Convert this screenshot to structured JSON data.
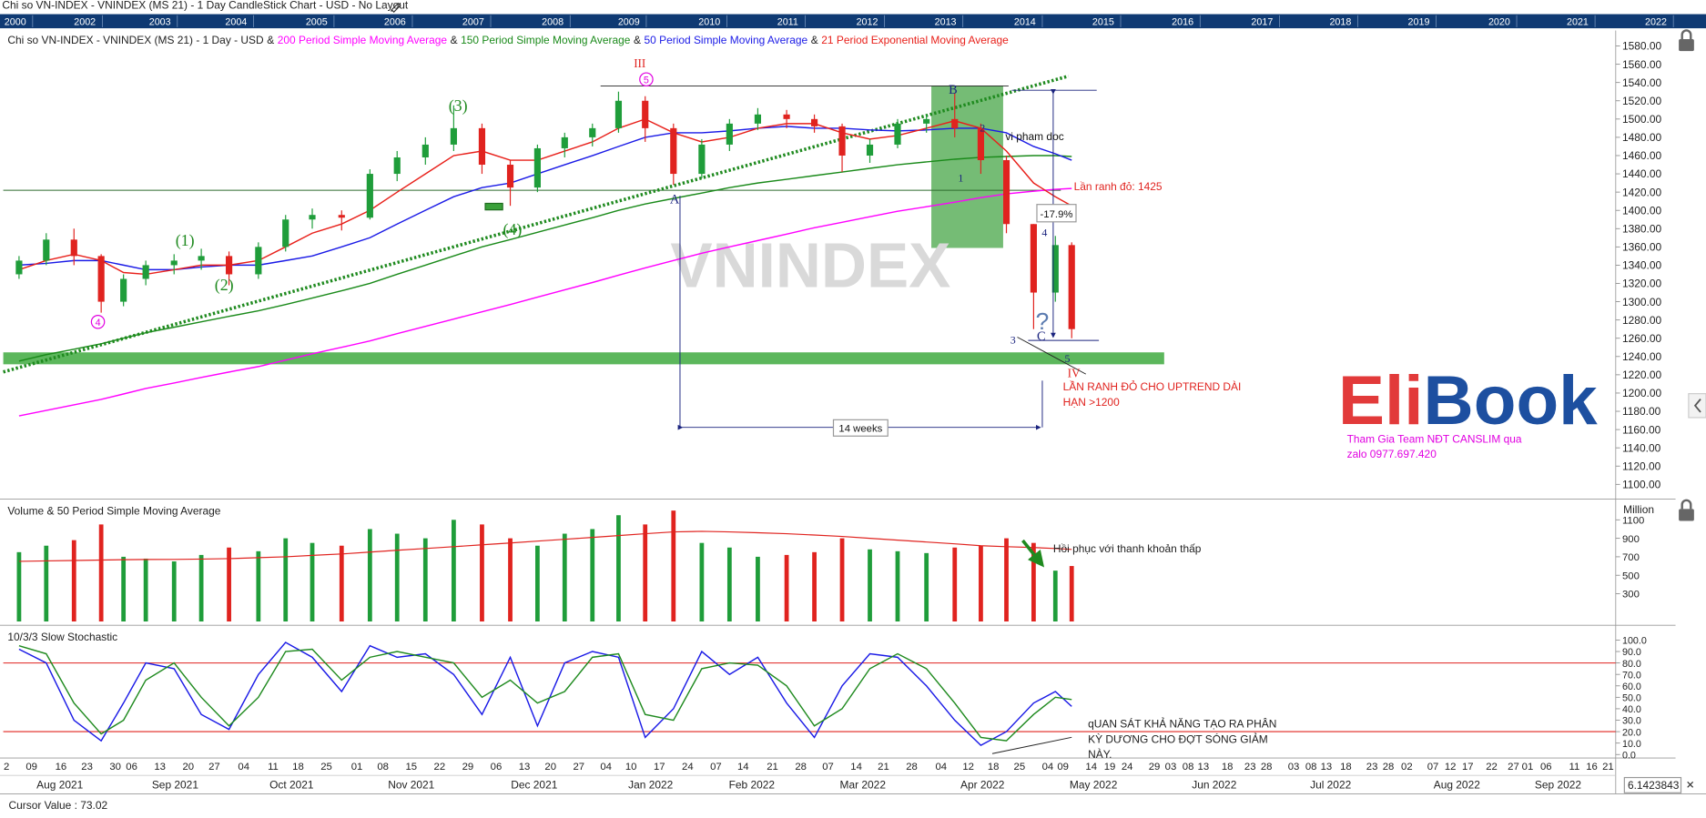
{
  "window_title": "Chi so VN-INDEX - VNINDEX (MS 21) - 1 Day CandleStick Chart - USD - No Layout",
  "timeline_years": [
    "2000",
    "2002",
    "2003",
    "2004",
    "2005",
    "2006",
    "2007",
    "2008",
    "2009",
    "2010",
    "2011",
    "2012",
    "2013",
    "2014",
    "2015",
    "2016",
    "2017",
    "2018",
    "2019",
    "2020",
    "2021",
    "2022"
  ],
  "x_axis": {
    "days": [
      "2",
      "09",
      "16",
      "23",
      "30",
      "06",
      "13",
      "20",
      "27",
      "04",
      "11",
      "18",
      "25",
      "01",
      "08",
      "15",
      "22",
      "29",
      "06",
      "13",
      "20",
      "27",
      "04",
      "10",
      "17",
      "24",
      "07",
      "14",
      "21",
      "28",
      "07",
      "14",
      "21",
      "28",
      "04",
      "12",
      "18",
      "25",
      "04",
      "09",
      "14",
      "19",
      "24",
      "29",
      "03",
      "08",
      "13",
      "18",
      "23",
      "28",
      "03",
      "08",
      "13",
      "18",
      "23",
      "28",
      "02",
      "07",
      "12",
      "17",
      "22",
      "27",
      "01",
      "06",
      "11",
      "16",
      "21"
    ],
    "months": [
      "Aug 2021",
      "Sep 2021",
      "Oct 2021",
      "Nov 2021",
      "Dec 2021",
      "Jan 2022",
      "Feb 2022",
      "Mar 2022",
      "Apr 2022",
      "May 2022",
      "Jun 2022",
      "Jul 2022",
      "Aug 2022",
      "Sep 2022"
    ]
  },
  "chart_data": [
    {
      "type": "candlestick",
      "subtitle": "Chi so VN-INDEX - VNINDEX (MS 21) - 1 Day - USD",
      "legend_separator": "&",
      "up_color": "#1f9d3a",
      "down_color": "#e0231f",
      "open": [
        1330,
        1345,
        1368,
        1350,
        1300,
        1325,
        1340,
        1345,
        1350,
        1330,
        1360,
        1390,
        1395,
        1392,
        1440,
        1458,
        1472,
        1490,
        1450,
        1425,
        1468,
        1480,
        1490,
        1520,
        1490,
        1440,
        1472,
        1495,
        1505,
        1500,
        1492,
        1460,
        1472,
        1495,
        1500,
        1490,
        1455,
        1385,
        1310,
        1362
      ],
      "high": [
        1350,
        1375,
        1380,
        1352,
        1330,
        1345,
        1352,
        1358,
        1355,
        1365,
        1395,
        1402,
        1400,
        1445,
        1465,
        1480,
        1515,
        1495,
        1455,
        1472,
        1485,
        1495,
        1530,
        1525,
        1495,
        1478,
        1500,
        1512,
        1510,
        1505,
        1495,
        1478,
        1500,
        1505,
        1528,
        1495,
        1460,
        1385,
        1372,
        1365
      ],
      "low": [
        1325,
        1340,
        1340,
        1288,
        1295,
        1318,
        1330,
        1335,
        1318,
        1325,
        1355,
        1380,
        1378,
        1390,
        1432,
        1450,
        1465,
        1440,
        1405,
        1420,
        1458,
        1470,
        1485,
        1475,
        1428,
        1435,
        1465,
        1488,
        1490,
        1485,
        1442,
        1452,
        1468,
        1485,
        1480,
        1440,
        1375,
        1270,
        1300,
        1260
      ],
      "close": [
        1345,
        1368,
        1350,
        1300,
        1325,
        1340,
        1345,
        1350,
        1330,
        1360,
        1390,
        1395,
        1392,
        1440,
        1458,
        1472,
        1490,
        1450,
        1425,
        1468,
        1480,
        1490,
        1520,
        1490,
        1440,
        1472,
        1495,
        1505,
        1500,
        1492,
        1460,
        1472,
        1495,
        1500,
        1490,
        1455,
        1385,
        1310,
        1362,
        1270
      ],
      "series": [
        {
          "name": "200 Period Simple Moving Average",
          "color": "#ff00ff",
          "values": [
            1175,
            1181,
            1187,
            1193,
            1199,
            1205,
            1211,
            1217,
            1223,
            1229,
            1236,
            1243,
            1250,
            1257,
            1265,
            1273,
            1281,
            1289,
            1297,
            1305,
            1313,
            1321,
            1329,
            1337,
            1345,
            1353,
            1360,
            1367,
            1374,
            1381,
            1387,
            1393,
            1399,
            1404,
            1409,
            1414,
            1418,
            1421,
            1423,
            1424
          ]
        },
        {
          "name": "150 Period Simple Moving Average",
          "color": "#1a8a1a",
          "values": [
            1235,
            1242,
            1248,
            1254,
            1260,
            1266,
            1272,
            1278,
            1284,
            1290,
            1297,
            1304,
            1312,
            1320,
            1330,
            1340,
            1350,
            1360,
            1368,
            1376,
            1384,
            1392,
            1400,
            1407,
            1413,
            1419,
            1425,
            1430,
            1434,
            1438,
            1442,
            1446,
            1450,
            1453,
            1456,
            1458,
            1459,
            1460,
            1460,
            1459
          ]
        },
        {
          "name": "50 Period Simple Moving Average",
          "color": "#1a1ae6",
          "values": [
            1340,
            1342,
            1345,
            1345,
            1340,
            1335,
            1335,
            1338,
            1340,
            1340,
            1345,
            1350,
            1360,
            1370,
            1385,
            1400,
            1415,
            1425,
            1430,
            1440,
            1450,
            1460,
            1470,
            1480,
            1485,
            1485,
            1487,
            1490,
            1492,
            1490,
            1490,
            1488,
            1487,
            1488,
            1490,
            1490,
            1485,
            1470,
            1462,
            1455
          ]
        },
        {
          "name": "21 Period Exponential Moving Average",
          "color": "#e8201a",
          "values": [
            1335,
            1345,
            1352,
            1345,
            1332,
            1330,
            1335,
            1340,
            1340,
            1345,
            1360,
            1375,
            1385,
            1400,
            1420,
            1440,
            1460,
            1465,
            1455,
            1455,
            1465,
            1475,
            1490,
            1500,
            1485,
            1475,
            1480,
            1490,
            1495,
            1495,
            1485,
            1478,
            1482,
            1490,
            1498,
            1490,
            1465,
            1430,
            1415,
            1405
          ]
        }
      ],
      "ylim": [
        1085,
        1597
      ],
      "yticks": [
        {
          "value": 1580,
          "label": "1580.00"
        },
        {
          "value": 1560,
          "label": "1560.00"
        },
        {
          "value": 1540,
          "label": "1540.00"
        },
        {
          "value": 1520,
          "label": "1520.00"
        },
        {
          "value": 1500,
          "label": "1500.00"
        },
        {
          "value": 1480,
          "label": "1480.00"
        },
        {
          "value": 1460,
          "label": "1460.00"
        },
        {
          "value": 1440,
          "label": "1440.00"
        },
        {
          "value": 1420,
          "label": "1420.00"
        },
        {
          "value": 1400,
          "label": "1400.00"
        },
        {
          "value": 1380,
          "label": "1380.00"
        },
        {
          "value": 1360,
          "label": "1360.00"
        },
        {
          "value": 1340,
          "label": "1340.00"
        },
        {
          "value": 1320,
          "label": "1320.00"
        },
        {
          "value": 1300,
          "label": "1300.00"
        },
        {
          "value": 1280,
          "label": "1280.00"
        },
        {
          "value": 1260,
          "label": "1260.00"
        },
        {
          "value": 1240,
          "label": "1240.00"
        },
        {
          "value": 1220,
          "label": "1220.00"
        },
        {
          "value": 1200,
          "label": "1200.00"
        },
        {
          "value": 1180,
          "label": "1180.00"
        },
        {
          "value": 1160,
          "label": "1160.00"
        },
        {
          "value": 1140,
          "label": "1140.00"
        },
        {
          "value": 1120,
          "label": "1120.00"
        },
        {
          "value": 1100,
          "label": "1100.00"
        }
      ],
      "watermark": "VNINDEX",
      "annotations": [
        "III",
        "5",
        "(3)",
        "(1)",
        "(2)",
        "(4)",
        "4",
        "A",
        "B",
        "1",
        "2",
        "3",
        "4",
        "5",
        "C",
        "IV",
        "vi pham doc",
        "Lần ranh đỏ: 1425",
        "-17.9%",
        "14 weeks",
        "LẦN RANH ĐỎ CHO UPTREND DÀI",
        "HẠN >1200",
        "?"
      ]
    },
    {
      "type": "volume",
      "title": "Volume & 50 Period Simple Moving Average",
      "unit_label": "Million",
      "values": [
        750,
        820,
        880,
        1050,
        700,
        680,
        650,
        720,
        800,
        760,
        900,
        850,
        820,
        1000,
        950,
        900,
        1100,
        1050,
        900,
        820,
        950,
        1000,
        1150,
        1050,
        1200,
        850,
        800,
        700,
        720,
        750,
        900,
        780,
        760,
        740,
        800,
        820,
        900,
        850,
        550,
        600
      ],
      "ma": {
        "color": "#e0231f",
        "values": [
          650,
          655,
          660,
          665,
          668,
          670,
          672,
          675,
          680,
          690,
          700,
          715,
          730,
          750,
          770,
          790,
          810,
          830,
          850,
          870,
          890,
          910,
          930,
          950,
          970,
          975,
          970,
          960,
          950,
          935,
          920,
          900,
          880,
          860,
          840,
          820,
          810,
          800,
          790,
          780
        ]
      },
      "ylim": [
        -18,
        1312
      ],
      "yticks": [
        300,
        500,
        700,
        900,
        1100
      ],
      "annotation": "Hồi phục với thanh khoản thấp"
    },
    {
      "type": "stochastic",
      "title": "10/3/3 Slow Stochastic",
      "series": [
        {
          "color": "#1a1ae6",
          "values": [
            92,
            80,
            30,
            12,
            45,
            80,
            75,
            35,
            22,
            70,
            98,
            85,
            55,
            95,
            85,
            88,
            70,
            35,
            85,
            25,
            80,
            90,
            85,
            15,
            40,
            90,
            70,
            85,
            45,
            15,
            60,
            88,
            85,
            60,
            30,
            8,
            20,
            45,
            55,
            42
          ]
        },
        {
          "color": "#1f8a1f",
          "values": [
            95,
            88,
            45,
            18,
            30,
            65,
            80,
            50,
            25,
            50,
            90,
            92,
            65,
            85,
            90,
            85,
            80,
            50,
            65,
            45,
            55,
            85,
            88,
            35,
            30,
            75,
            80,
            78,
            60,
            25,
            40,
            75,
            88,
            75,
            45,
            15,
            12,
            35,
            50,
            48
          ]
        }
      ],
      "levels": [
        80,
        20
      ],
      "level_color": "#e0231f",
      "ylim": [
        -3,
        111
      ],
      "yticks": [
        {
          "value": 100,
          "label": "100.0"
        },
        {
          "value": 90,
          "label": "90.0"
        },
        {
          "value": 80,
          "label": "80.0"
        },
        {
          "value": 70,
          "label": "70.0"
        },
        {
          "value": 60,
          "label": "60.0"
        },
        {
          "value": 50,
          "label": "50.0"
        },
        {
          "value": 40,
          "label": "40.0"
        },
        {
          "value": 30,
          "label": "30.0"
        },
        {
          "value": 20,
          "label": "20.0"
        },
        {
          "value": 10,
          "label": "10.0"
        },
        {
          "value": 0,
          "label": "0.0"
        }
      ],
      "annotation": [
        "qUAN SÁT KHẢ NĂNG TẠO RA PHÂN",
        "KỲ DƯƠNG CHO ĐỢT SÓNG GIẢM",
        "NÀY."
      ]
    }
  ],
  "logo": [
    "Eli",
    "Book"
  ],
  "tagline": [
    "Tham Gia Team NĐT CANSLIM qua",
    "zalo 0977.697.420"
  ],
  "cursor_text": "Cursor Value : 73.02",
  "scale_box": "6.1423843"
}
